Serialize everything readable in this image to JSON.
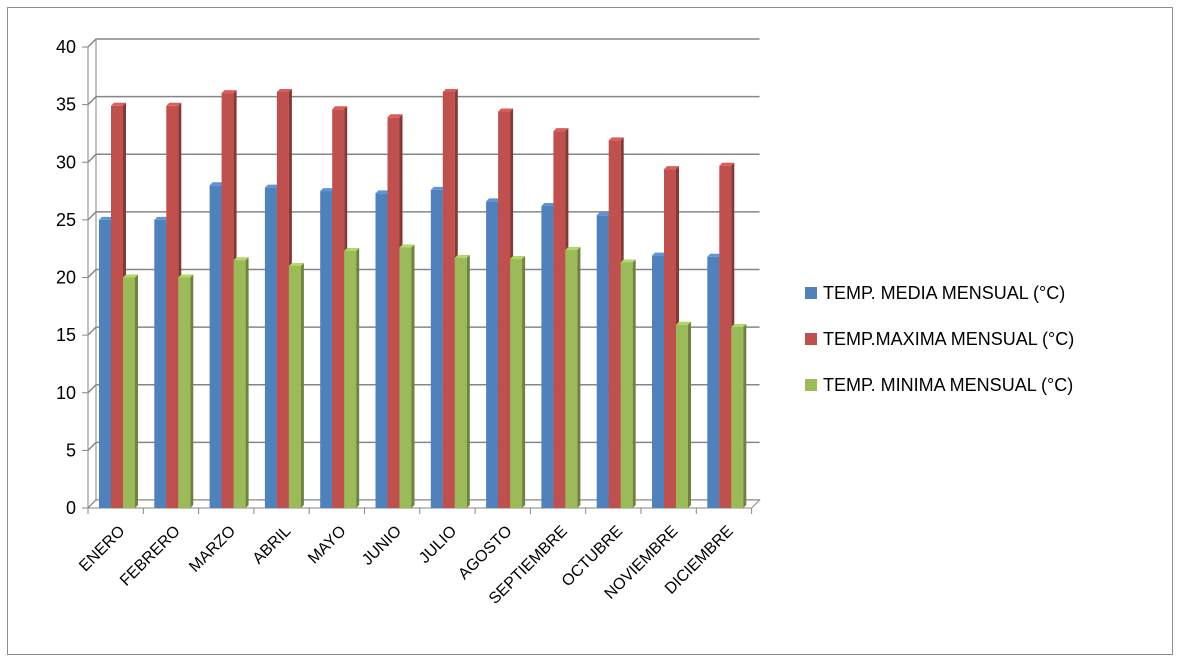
{
  "chart_data": {
    "type": "bar",
    "categories": [
      "ENERO",
      "FEBRERO",
      "MARZO",
      "ABRIL",
      "MAYO",
      "JUNIO",
      "JULIO",
      "AGOSTO",
      "SEPTIEMBRE",
      "OCTUBRE",
      "NOVIEMBRE",
      "DICIEMBRE"
    ],
    "series": [
      {
        "name": "TEMP. MEDIA MENSUAL (°C)",
        "color": "#4F81BD",
        "values": [
          25.0,
          25.0,
          28.0,
          27.8,
          27.5,
          27.3,
          27.6,
          26.6,
          26.2,
          25.4,
          21.9,
          21.8
        ]
      },
      {
        "name": "TEMP.MAXIMA MENSUAL (°C)",
        "color": "#C0504D",
        "values": [
          34.9,
          34.9,
          36.0,
          36.1,
          34.6,
          33.9,
          36.1,
          34.4,
          32.7,
          31.9,
          29.4,
          29.7
        ]
      },
      {
        "name": "TEMP. MINIMA MENSUAL (°C)",
        "color": "#9BBB59",
        "values": [
          20.0,
          20.0,
          21.5,
          21.0,
          22.3,
          22.6,
          21.7,
          21.6,
          22.4,
          21.3,
          15.9,
          15.7
        ]
      }
    ],
    "yticks": [
      0,
      5,
      10,
      15,
      20,
      25,
      30,
      35,
      40
    ],
    "ylim": [
      0,
      40
    ],
    "grid": true,
    "legend_position": "right",
    "style": "3d-clustered-column"
  }
}
